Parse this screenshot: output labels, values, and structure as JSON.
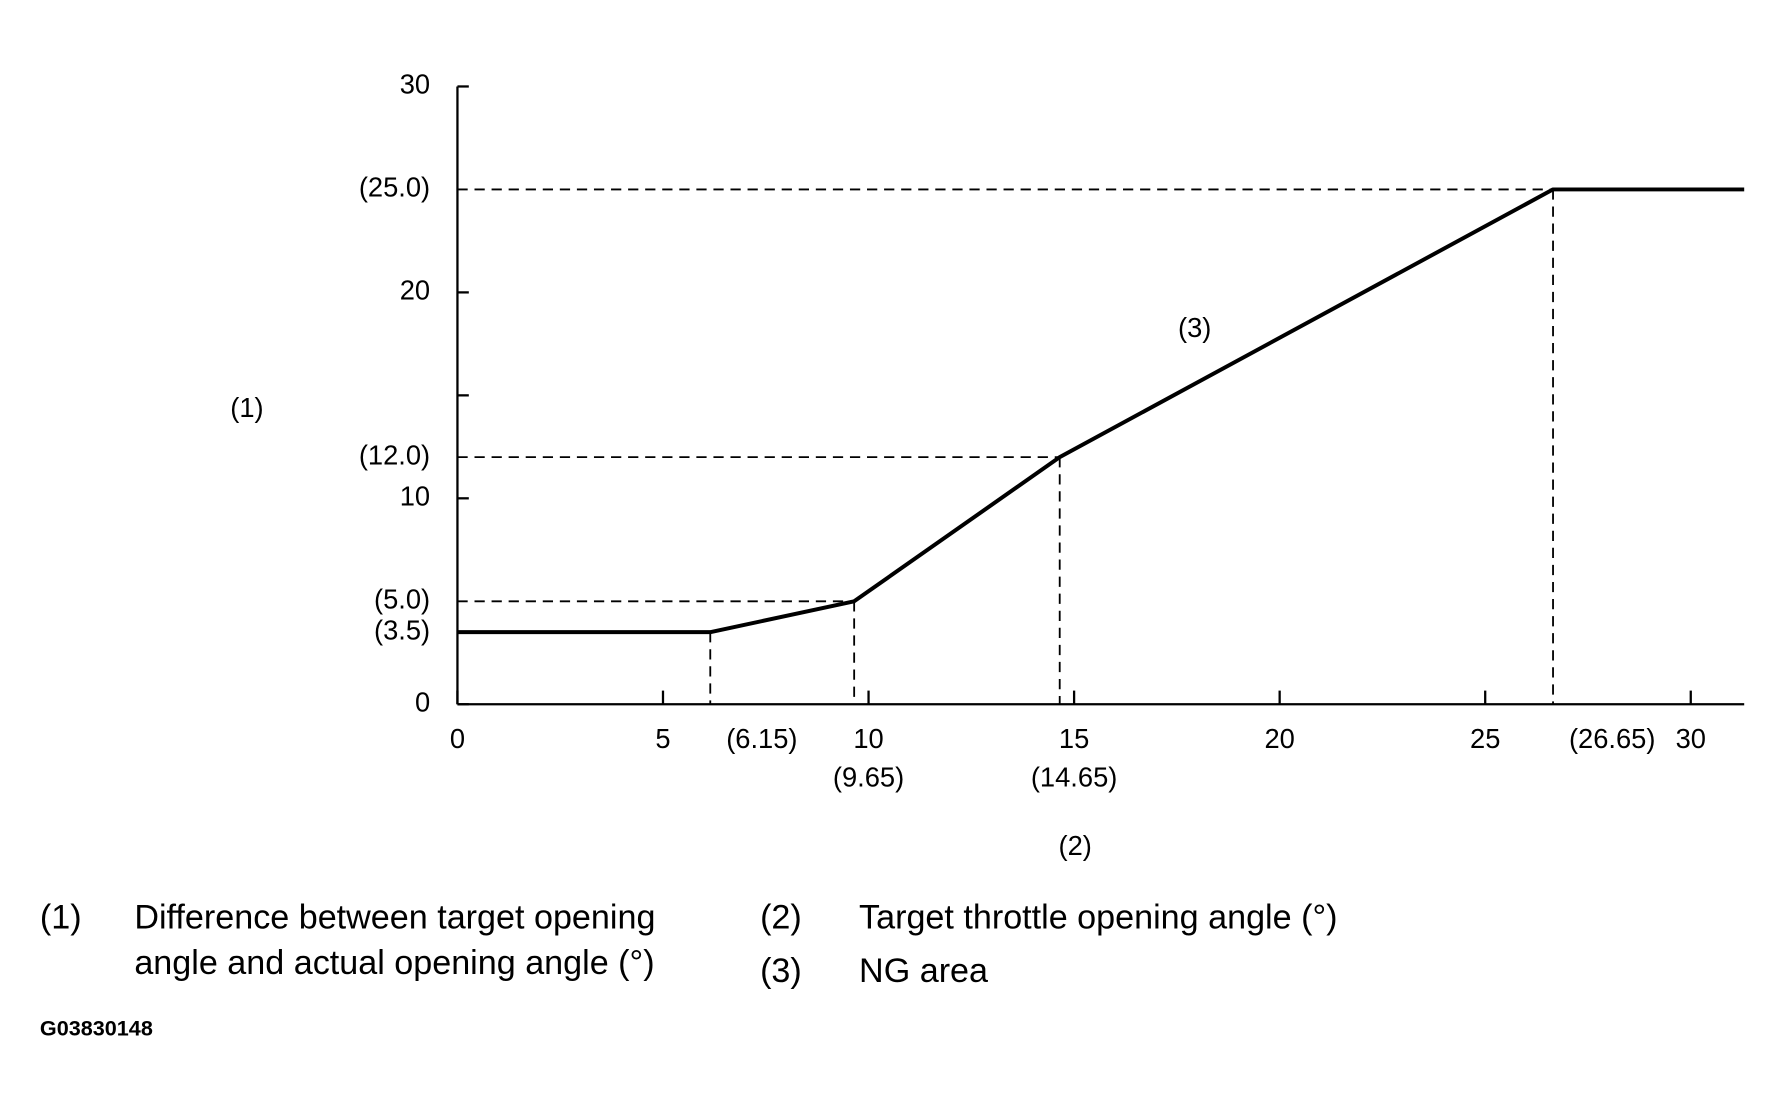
{
  "chart_data": {
    "type": "line",
    "xlabel": "(2)",
    "ylabel": "(1)",
    "x": [
      0,
      6.15,
      9.65,
      14.65,
      26.65,
      31.3
    ],
    "series": [
      {
        "name": "(3)",
        "color": "#000000",
        "values": [
          3.5,
          3.5,
          5,
          12,
          25,
          25
        ]
      }
    ],
    "xlim": [
      0,
      31.3
    ],
    "ylim": [
      0,
      30
    ],
    "xticks": [
      0,
      5,
      10,
      15,
      20,
      25,
      30
    ],
    "yticks": [
      0,
      10,
      20,
      30
    ],
    "yminor_ticks": [
      15
    ],
    "reference_points": [
      {
        "x": 6.15,
        "y": 3.5,
        "x_label": "(6.15)",
        "y_label": "(3.5)"
      },
      {
        "x": 9.65,
        "y": 5,
        "x_label": "(9.65)",
        "y_label": "(5.0)"
      },
      {
        "x": 14.65,
        "y": 12,
        "x_label": "(14.65)",
        "y_label": "(12.0)"
      },
      {
        "x": 26.65,
        "y": 25,
        "x_label": "(26.65)",
        "y_label": "(25.0)"
      }
    ],
    "legend": [
      {
        "marker": "(1)",
        "lines": [
          "Difference between target opening",
          "angle and actual opening angle (°)"
        ]
      },
      {
        "marker": "(2)",
        "lines": [
          "Target throttle opening angle (°)"
        ]
      },
      {
        "marker": "(3)",
        "lines": [
          "NG area"
        ]
      }
    ],
    "code": "G03830148"
  }
}
